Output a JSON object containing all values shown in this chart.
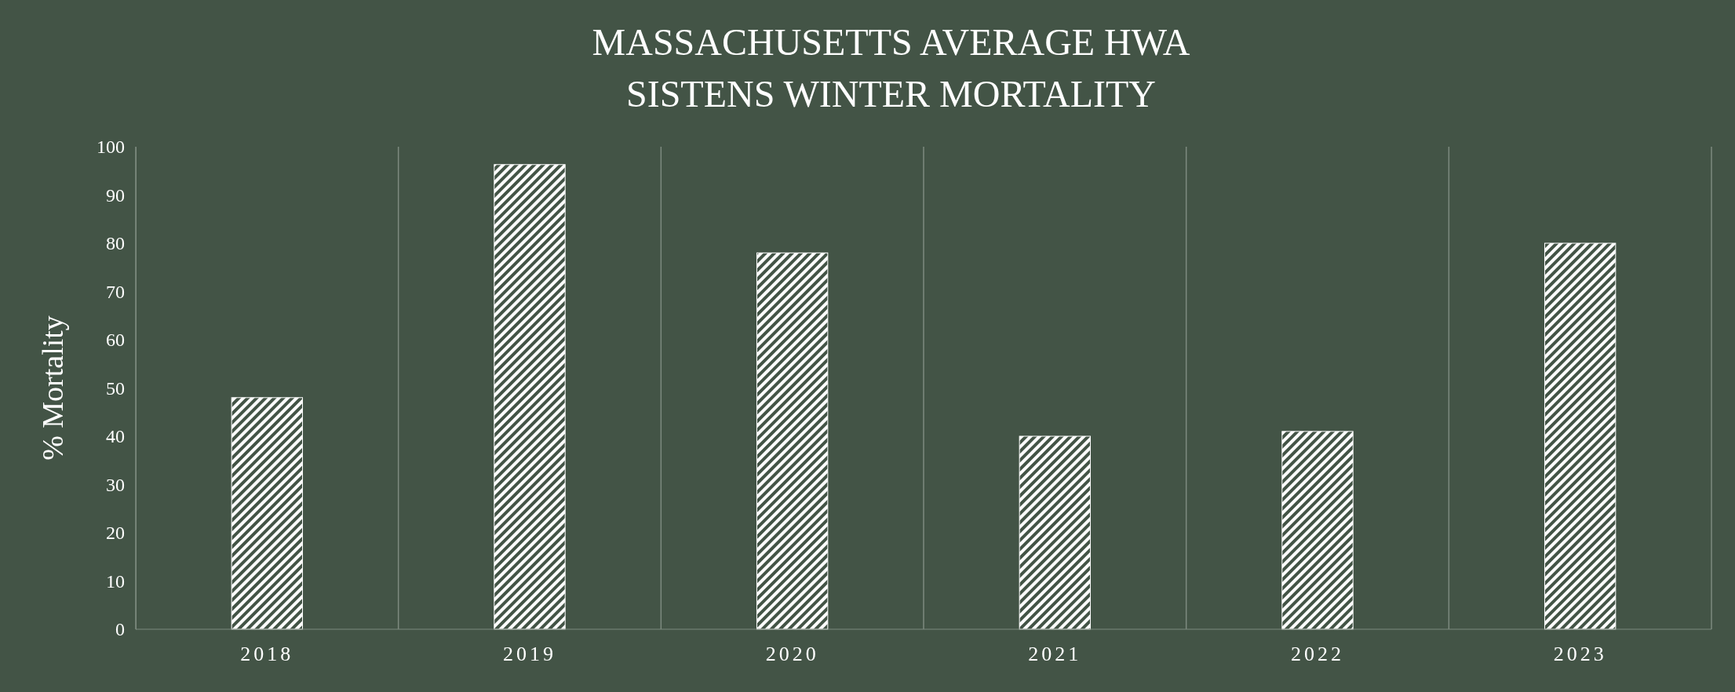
{
  "chart_data": {
    "type": "bar",
    "title": "MASSACHUSETTS AVERAGE HWA\nSISTENS WINTER MORTALITY",
    "ylabel": "% Mortality",
    "categories": [
      "2018",
      "2019",
      "2020",
      "2021",
      "2022",
      "2023"
    ],
    "values": [
      48,
      96.3,
      78,
      40,
      41,
      80
    ],
    "color": "#ffffff",
    "ylim": [
      0,
      100
    ],
    "yticks": [
      0,
      10,
      20,
      30,
      40,
      50,
      60,
      70,
      80,
      90,
      100
    ],
    "grid": "x"
  }
}
